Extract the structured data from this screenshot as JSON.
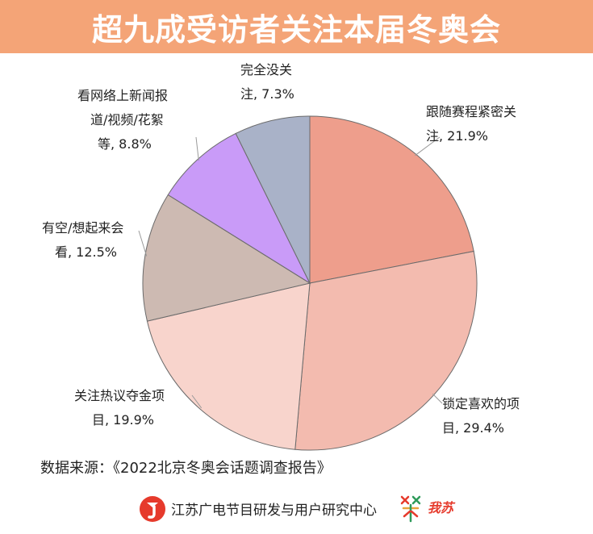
{
  "title": "超九成受访者关注本届冬奥会",
  "chart_data": {
    "type": "pie",
    "title": "超九成受访者关注本届冬奥会",
    "slices": [
      {
        "label_lines": [
          "跟随赛程紧密关",
          "注, 21.9%"
        ],
        "value": 21.9,
        "color": "#EE9E8C"
      },
      {
        "label_lines": [
          "锁定喜欢的项",
          "目, 29.4%"
        ],
        "value": 29.4,
        "color": "#F3BBAF"
      },
      {
        "label_lines": [
          "关注热议夺金项",
          "目, 19.9%"
        ],
        "value": 19.9,
        "color": "#F8D4CC"
      },
      {
        "label_lines": [
          "有空/想起来会",
          "看, 12.5%"
        ],
        "value": 12.5,
        "color": "#CDBAB2"
      },
      {
        "label_lines": [
          "看网络上新闻报",
          "道/视频/花絮",
          "等, 8.8%"
        ],
        "value": 8.8,
        "color": "#C99BF8"
      },
      {
        "label_lines": [
          "完全没关",
          "注, 7.3%"
        ],
        "value": 7.3,
        "color": "#A9B2C8"
      }
    ]
  },
  "source": "数据来源：《2022北京冬奥会话题调查报告》",
  "footer": {
    "org_name": "江苏广电节目研发与用户研究中心",
    "brand_name": "我苏"
  },
  "colors": {
    "title_bar": "#F4A477",
    "logo_red": "#E63A2C",
    "brand_green": "#2E9A5A"
  }
}
